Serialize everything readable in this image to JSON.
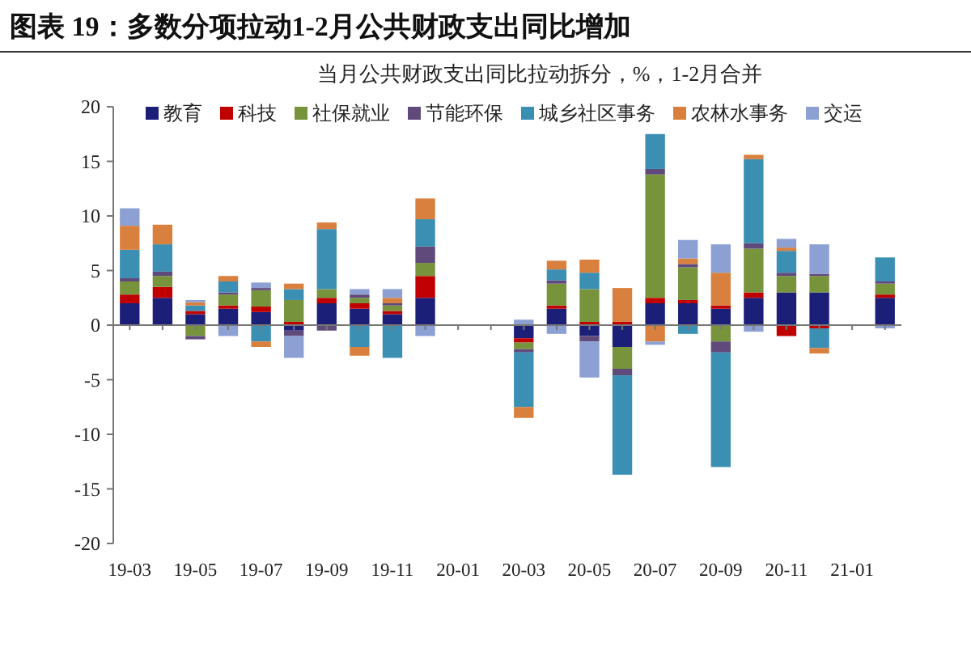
{
  "chart_data": {
    "type": "bar",
    "stacked": true,
    "title": "图表 19：多数分项拉动1-2月公共财政支出同比增加",
    "subtitle": "当月公共财政支出同比拉动拆分，%，1-2月合并",
    "categories": [
      "19-03",
      null,
      "19-05",
      null,
      "19-07",
      null,
      "19-09",
      null,
      "19-11",
      null,
      "20-01",
      null,
      "20-03",
      null,
      "20-05",
      null,
      "20-07",
      null,
      "20-09",
      null,
      "20-11",
      null,
      "21-01",
      null
    ],
    "series": [
      {
        "name": "教育",
        "color": "#1b1f78",
        "values": [
          2.0,
          2.5,
          1.0,
          1.5,
          1.2,
          -0.5,
          2.0,
          1.5,
          1.0,
          2.5,
          null,
          null,
          -1.2,
          1.5,
          -1.0,
          -2.0,
          2.0,
          2.0,
          1.5,
          2.5,
          3.0,
          3.0,
          null,
          2.5
        ]
      },
      {
        "name": "科技",
        "color": "#c00000",
        "values": [
          0.8,
          1.0,
          0.3,
          0.3,
          0.5,
          0.3,
          0.5,
          0.5,
          0.3,
          2.0,
          null,
          null,
          -0.4,
          0.3,
          0.3,
          0.3,
          0.5,
          0.3,
          0.3,
          0.5,
          -1.0,
          -0.3,
          null,
          0.3
        ]
      },
      {
        "name": "社保就业",
        "color": "#77933c",
        "values": [
          1.2,
          1.0,
          -1.0,
          1.0,
          1.5,
          2.0,
          0.8,
          0.5,
          0.5,
          1.2,
          null,
          null,
          -0.6,
          2.0,
          3.0,
          -2.0,
          11.3,
          3.0,
          -1.5,
          4.0,
          1.5,
          1.5,
          null,
          1.0
        ]
      },
      {
        "name": "节能环保",
        "color": "#604a7b",
        "values": [
          0.3,
          0.4,
          -0.3,
          0.2,
          0.2,
          -0.5,
          -0.5,
          0.3,
          0.2,
          1.5,
          null,
          null,
          -0.3,
          0.3,
          -0.5,
          -0.6,
          0.5,
          0.3,
          -1.0,
          0.5,
          0.3,
          0.2,
          null,
          0.2
        ]
      },
      {
        "name": "城乡社区事务",
        "color": "#3a8fb3",
        "values": [
          2.6,
          2.5,
          0.5,
          1.0,
          -1.5,
          1.0,
          5.5,
          -2.0,
          -3.0,
          2.5,
          null,
          null,
          -5.0,
          1.0,
          1.5,
          -9.1,
          3.2,
          -0.8,
          -10.5,
          7.7,
          2.0,
          -1.8,
          null,
          2.2
        ]
      },
      {
        "name": "农林水事务",
        "color": "#d9803e",
        "values": [
          2.2,
          1.8,
          0.3,
          0.5,
          -0.5,
          0.5,
          0.6,
          -0.8,
          0.5,
          1.9,
          null,
          null,
          -1.0,
          0.8,
          1.2,
          3.1,
          -1.5,
          0.5,
          3.0,
          0.4,
          0.3,
          -0.5,
          null,
          0.0
        ]
      },
      {
        "name": "交运",
        "color": "#8da0d3",
        "values": [
          1.6,
          0.0,
          0.2,
          -1.0,
          0.5,
          -2.0,
          0.0,
          0.5,
          0.8,
          -1.0,
          null,
          null,
          0.5,
          -0.8,
          -3.3,
          0.0,
          -0.3,
          1.7,
          2.6,
          -0.6,
          0.8,
          2.7,
          null,
          -0.3
        ]
      }
    ],
    "ylim": [
      -20,
      20
    ],
    "yticks": [
      -20,
      -15,
      -10,
      -5,
      0,
      5,
      10,
      15,
      20
    ],
    "legend": "top"
  }
}
